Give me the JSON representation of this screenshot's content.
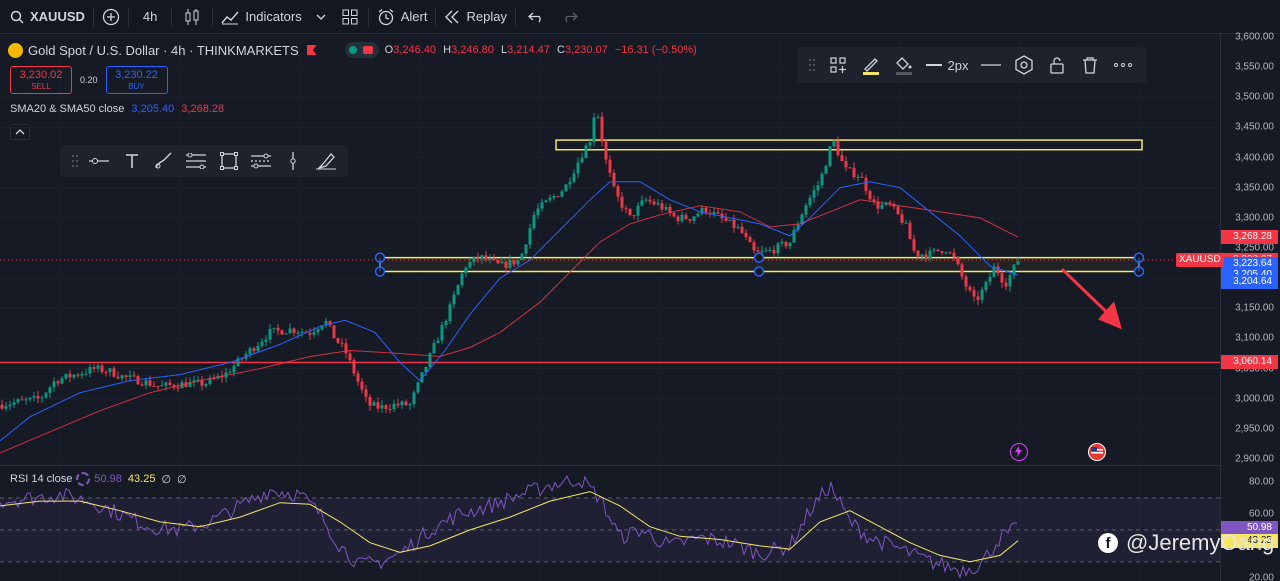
{
  "toolbar": {
    "symbol": "XAUUSD",
    "interval": "4h",
    "indicators_label": "Indicators",
    "alert_label": "Alert",
    "replay_label": "Replay"
  },
  "legend": {
    "title": "Gold Spot / U.S. Dollar · 4h · THINKMARKETS",
    "o_key": "O",
    "o_val": "3,246.40",
    "h_key": "H",
    "h_val": "3,246.80",
    "l_key": "L",
    "l_val": "3,214.47",
    "c_key": "C",
    "c_val": "3,230.07",
    "change": "−16.31 (−0.50%)"
  },
  "trade": {
    "sell_price": "3,230.02",
    "sell_label": "SELL",
    "spread": "0.20",
    "buy_price": "3,230.22",
    "buy_label": "BUY"
  },
  "sma_legend": {
    "label": "SMA20 & SMA50 close",
    "sma20": "3,205.40",
    "sma50": "3,268.28"
  },
  "float_toolbar": {
    "width_label": "2px"
  },
  "rsi_legend": {
    "label": "RSI 14 close",
    "rsi": "50.98",
    "ma": "43.25",
    "extra1": "∅",
    "extra2": "∅"
  },
  "watermark": "@JeremyOang",
  "colors": {
    "up": "#089981",
    "down": "#f23645",
    "sma20": "#2962ff",
    "sma50": "#f23645",
    "zone": "#f5e663",
    "support": "#f23645",
    "rsi": "#7e57c2",
    "rsi_ma": "#f5e663",
    "arrow": "#f23645"
  },
  "axis": {
    "ticks": [
      "3,600.00",
      "3,550.00",
      "3,500.00",
      "3,450.00",
      "3,400.00",
      "3,350.00",
      "3,300.00",
      "3,250.00",
      "3,200.00",
      "3,150.00",
      "3,100.00",
      "3,050.00",
      "3,000.00",
      "2,950.00",
      "2,900.00"
    ],
    "rsi_ticks": [
      "80.00",
      "60.00",
      "40.00",
      "20.00"
    ],
    "price_labels": [
      {
        "name": "sma50-label",
        "text": "3,268.28",
        "color": "#f23645",
        "price": 3268.28
      },
      {
        "name": "last-price-label",
        "text": "3,230.07",
        "color": "#f23645",
        "price": 3230.07
      },
      {
        "name": "countdown-label",
        "text": "01:56:12",
        "color": "#f23645",
        "price": 3215
      },
      {
        "name": "level-label-3223",
        "text": "3,223.64",
        "color": "#2962ff",
        "price": 3223.64
      },
      {
        "name": "sma20-label",
        "text": "3,205.40",
        "color": "#2962ff",
        "price": 3205.4
      },
      {
        "name": "level-label-3204",
        "text": "3,204.64",
        "color": "#2962ff",
        "price": 3194
      },
      {
        "name": "support-label",
        "text": "3,060.14",
        "color": "#f23645",
        "price": 3060.14
      }
    ],
    "rsi_labels": [
      {
        "name": "rsi-value-label",
        "text": "50.98",
        "color": "#7e57c2",
        "value": 50.98
      },
      {
        "name": "rsi-ma-label",
        "text": "43.25",
        "color": "#f5e663",
        "value": 43.25
      }
    ],
    "symbol_tag": "XAUUSD"
  },
  "chart_data": {
    "type": "candlestick",
    "symbol": "XAUUSD",
    "timeframe": "4h",
    "ylim": [
      2890,
      3605
    ],
    "rsi_ylim": [
      18,
      90
    ],
    "last_close": 3230.07,
    "closes_path": [
      [
        0,
        2990
      ],
      [
        20,
        2995
      ],
      [
        40,
        3000
      ],
      [
        55,
        3030
      ],
      [
        75,
        3040
      ],
      [
        95,
        3050
      ],
      [
        110,
        3045
      ],
      [
        125,
        3035
      ],
      [
        140,
        3030
      ],
      [
        160,
        3020
      ],
      [
        185,
        3025
      ],
      [
        205,
        3025
      ],
      [
        225,
        3040
      ],
      [
        250,
        3080
      ],
      [
        270,
        3110
      ],
      [
        290,
        3115
      ],
      [
        310,
        3110
      ],
      [
        325,
        3130
      ],
      [
        335,
        3100
      ],
      [
        345,
        3080
      ],
      [
        355,
        3040
      ],
      [
        368,
        2990
      ],
      [
        380,
        2985
      ],
      [
        395,
        2990
      ],
      [
        410,
        2990
      ],
      [
        420,
        3030
      ],
      [
        435,
        3090
      ],
      [
        450,
        3150
      ],
      [
        465,
        3220
      ],
      [
        480,
        3235
      ],
      [
        500,
        3220
      ],
      [
        520,
        3230
      ],
      [
        535,
        3310
      ],
      [
        550,
        3330
      ],
      [
        565,
        3350
      ],
      [
        580,
        3400
      ],
      [
        590,
        3430
      ],
      [
        596,
        3490
      ],
      [
        605,
        3400
      ],
      [
        615,
        3340
      ],
      [
        630,
        3300
      ],
      [
        645,
        3330
      ],
      [
        660,
        3320
      ],
      [
        675,
        3300
      ],
      [
        690,
        3300
      ],
      [
        705,
        3315
      ],
      [
        720,
        3300
      ],
      [
        740,
        3280
      ],
      [
        755,
        3240
      ],
      [
        770,
        3245
      ],
      [
        790,
        3260
      ],
      [
        805,
        3320
      ],
      [
        820,
        3360
      ],
      [
        833,
        3430
      ],
      [
        845,
        3380
      ],
      [
        860,
        3370
      ],
      [
        875,
        3320
      ],
      [
        890,
        3320
      ],
      [
        905,
        3290
      ],
      [
        915,
        3240
      ],
      [
        930,
        3240
      ],
      [
        945,
        3250
      ],
      [
        955,
        3230
      ],
      [
        965,
        3190
      ],
      [
        975,
        3160
      ],
      [
        985,
        3185
      ],
      [
        995,
        3220
      ],
      [
        1005,
        3190
      ],
      [
        1012,
        3210
      ],
      [
        1018,
        3230
      ]
    ],
    "sma20_path": [
      [
        0,
        2930
      ],
      [
        30,
        2970
      ],
      [
        80,
        3010
      ],
      [
        130,
        3030
      ],
      [
        180,
        3040
      ],
      [
        230,
        3060
      ],
      [
        280,
        3090
      ],
      [
        320,
        3120
      ],
      [
        345,
        3130
      ],
      [
        375,
        3110
      ],
      [
        400,
        3060
      ],
      [
        420,
        3030
      ],
      [
        445,
        3080
      ],
      [
        470,
        3140
      ],
      [
        500,
        3200
      ],
      [
        530,
        3230
      ],
      [
        560,
        3280
      ],
      [
        590,
        3330
      ],
      [
        610,
        3360
      ],
      [
        640,
        3360
      ],
      [
        670,
        3330
      ],
      [
        700,
        3310
      ],
      [
        730,
        3300
      ],
      [
        760,
        3290
      ],
      [
        790,
        3270
      ],
      [
        810,
        3300
      ],
      [
        840,
        3350
      ],
      [
        870,
        3360
      ],
      [
        900,
        3350
      ],
      [
        930,
        3310
      ],
      [
        960,
        3270
      ],
      [
        990,
        3220
      ],
      [
        1018,
        3205
      ]
    ],
    "sma50_path": [
      [
        0,
        2910
      ],
      [
        50,
        2945
      ],
      [
        100,
        2980
      ],
      [
        150,
        3010
      ],
      [
        200,
        3030
      ],
      [
        260,
        3050
      ],
      [
        310,
        3070
      ],
      [
        350,
        3080
      ],
      [
        400,
        3075
      ],
      [
        440,
        3070
      ],
      [
        470,
        3085
      ],
      [
        500,
        3110
      ],
      [
        540,
        3160
      ],
      [
        570,
        3210
      ],
      [
        600,
        3260
      ],
      [
        630,
        3290
      ],
      [
        660,
        3305
      ],
      [
        700,
        3320
      ],
      [
        740,
        3310
      ],
      [
        770,
        3285
      ],
      [
        800,
        3290
      ],
      [
        830,
        3310
      ],
      [
        860,
        3330
      ],
      [
        900,
        3320
      ],
      [
        940,
        3310
      ],
      [
        980,
        3300
      ],
      [
        1018,
        3268
      ]
    ],
    "resistance_zone": [
      3413,
      3429
    ],
    "breakout_zone": [
      3211,
      3234
    ],
    "support_line": 3060.14,
    "rsi": {
      "last": 50.98,
      "ma": 43.25,
      "path": [
        [
          0,
          68
        ],
        [
          30,
          70
        ],
        [
          60,
          72
        ],
        [
          90,
          68
        ],
        [
          120,
          60
        ],
        [
          150,
          52
        ],
        [
          180,
          50
        ],
        [
          210,
          55
        ],
        [
          240,
          65
        ],
        [
          270,
          75
        ],
        [
          300,
          72
        ],
        [
          320,
          60
        ],
        [
          340,
          40
        ],
        [
          360,
          28
        ],
        [
          380,
          30
        ],
        [
          400,
          35
        ],
        [
          430,
          50
        ],
        [
          460,
          60
        ],
        [
          490,
          65
        ],
        [
          520,
          72
        ],
        [
          550,
          78
        ],
        [
          580,
          82
        ],
        [
          600,
          70
        ],
        [
          620,
          45
        ],
        [
          640,
          50
        ],
        [
          670,
          40
        ],
        [
          700,
          45
        ],
        [
          730,
          42
        ],
        [
          760,
          35
        ],
        [
          790,
          40
        ],
        [
          810,
          62
        ],
        [
          830,
          78
        ],
        [
          850,
          55
        ],
        [
          870,
          45
        ],
        [
          900,
          38
        ],
        [
          930,
          30
        ],
        [
          960,
          25
        ],
        [
          980,
          28
        ],
        [
          1000,
          45
        ],
        [
          1018,
          50.98
        ]
      ],
      "ma_path": [
        [
          0,
          65
        ],
        [
          40,
          68
        ],
        [
          80,
          68
        ],
        [
          120,
          62
        ],
        [
          160,
          55
        ],
        [
          200,
          52
        ],
        [
          240,
          58
        ],
        [
          280,
          67
        ],
        [
          310,
          66
        ],
        [
          340,
          55
        ],
        [
          370,
          42
        ],
        [
          400,
          36
        ],
        [
          430,
          40
        ],
        [
          470,
          50
        ],
        [
          510,
          58
        ],
        [
          550,
          68
        ],
        [
          590,
          74
        ],
        [
          620,
          65
        ],
        [
          650,
          52
        ],
        [
          680,
          46
        ],
        [
          720,
          44
        ],
        [
          760,
          40
        ],
        [
          790,
          38
        ],
        [
          820,
          55
        ],
        [
          850,
          62
        ],
        [
          880,
          52
        ],
        [
          910,
          42
        ],
        [
          940,
          34
        ],
        [
          970,
          30
        ],
        [
          1000,
          34
        ],
        [
          1018,
          43.25
        ]
      ]
    }
  }
}
